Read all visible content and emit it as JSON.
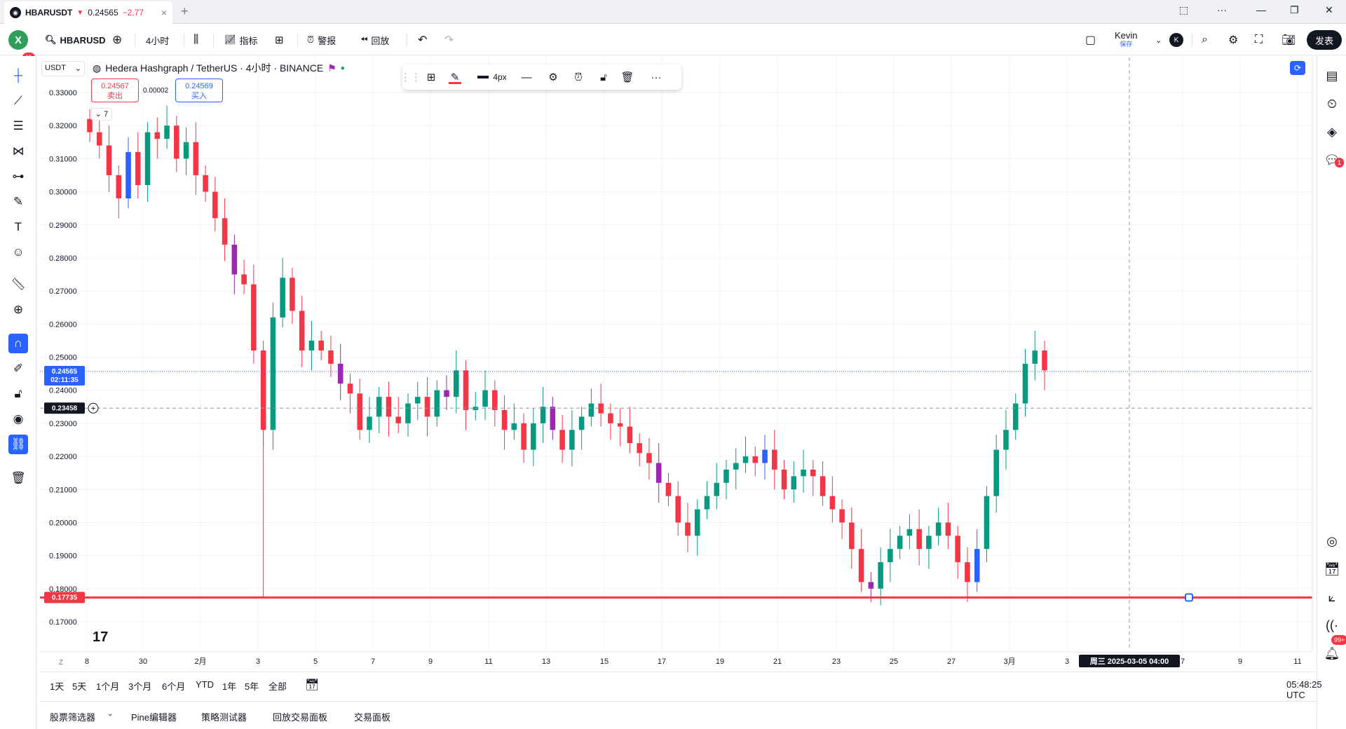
{
  "window": {
    "tab_title": "HBARUSDT",
    "tab_price": "0.24565",
    "tab_change": "−2.77",
    "tab_close": "×",
    "new_tab": "+",
    "controls": [
      "⬚",
      "···",
      "—",
      "❐",
      "✕"
    ]
  },
  "toolbar": {
    "avatar_letter": "X",
    "avatar_badge": "11",
    "symbol": "HBARUSD",
    "interval": "4小时",
    "indicators_label": "指标",
    "alerts_label": "警报",
    "replay_label": "回放",
    "user_name": "Kevin",
    "user_status": "保存",
    "user_initial": "K",
    "publish_label": "发表"
  },
  "chart": {
    "currency_select": "USDT",
    "legend_title": "Hedera Hashgraph / TetherUS · 4小时 · BINANCE",
    "sell_price": "0.24567",
    "sell_label": "卖出",
    "spread": "0.00002",
    "buy_price": "0.24569",
    "buy_label": "买入",
    "collapse_count": "7",
    "watermark": "17",
    "drawbar": {
      "width_label": "4px"
    },
    "current_price_label": "0.24565",
    "countdown_label": "02:11:35",
    "crosshair_price_label": "0.23458",
    "hline_price_label": "0.17735",
    "crosshair_time_label": "周三 2025-03-05   04:00",
    "x_axis_z": "Z"
  },
  "chart_data": {
    "type": "candlestick",
    "symbol": "HBARUSDT",
    "title": "Hedera Hashgraph / TetherUS · 4小时 · BINANCE",
    "ylim": [
      0.165,
      0.335
    ],
    "y_ticks": [
      "0.33000",
      "0.32000",
      "0.31000",
      "0.30000",
      "0.29000",
      "0.28000",
      "0.27000",
      "0.26000",
      "0.25000",
      "0.24000",
      "0.23000",
      "0.22000",
      "0.21000",
      "0.20000",
      "0.19000",
      "0.18000",
      "0.17000"
    ],
    "x_ticks": [
      "8",
      "30",
      "2月",
      "3",
      "5",
      "7",
      "9",
      "11",
      "13",
      "15",
      "17",
      "19",
      "21",
      "23",
      "25",
      "27",
      "3月",
      "3",
      "周三 2025-03-05   04:00",
      "7",
      "9",
      "11"
    ],
    "colors": {
      "up": "#089981",
      "down": "#f23645",
      "alt_up": "#2962ff",
      "alt_down": "#9c27b0",
      "hline": "#f23645"
    },
    "horizontal_line": 0.17735,
    "last_price": 0.24565,
    "crosshair_price": 0.23458,
    "closes": [
      0.318,
      0.314,
      0.305,
      0.298,
      0.312,
      0.302,
      0.318,
      0.316,
      0.32,
      0.31,
      0.315,
      0.305,
      0.3,
      0.292,
      0.284,
      0.275,
      0.272,
      0.252,
      0.228,
      0.262,
      0.274,
      0.264,
      0.252,
      0.255,
      0.252,
      0.248,
      0.242,
      0.239,
      0.228,
      0.232,
      0.238,
      0.232,
      0.23,
      0.236,
      0.238,
      0.232,
      0.24,
      0.238,
      0.246,
      0.234,
      0.235,
      0.24,
      0.234,
      0.228,
      0.23,
      0.222,
      0.23,
      0.235,
      0.228,
      0.222,
      0.228,
      0.232,
      0.236,
      0.233,
      0.23,
      0.229,
      0.224,
      0.221,
      0.218,
      0.212,
      0.208,
      0.2,
      0.196,
      0.204,
      0.208,
      0.212,
      0.216,
      0.218,
      0.22,
      0.218,
      0.222,
      0.216,
      0.21,
      0.214,
      0.216,
      0.214,
      0.208,
      0.204,
      0.2,
      0.192,
      0.182,
      0.18,
      0.188,
      0.192,
      0.196,
      0.198,
      0.192,
      0.196,
      0.2,
      0.196,
      0.188,
      0.182,
      0.192,
      0.208,
      0.222,
      0.228,
      0.236,
      0.248,
      0.252,
      0.246
    ]
  },
  "timeframes": [
    "1天",
    "5天",
    "1个月",
    "3个月",
    "6个月",
    "YTD",
    "1年",
    "5年",
    "全部"
  ],
  "clock": "05:48:25 UTC",
  "panels": [
    "股票筛选器",
    "Pine编辑器",
    "策略测试器",
    "回放交易面板",
    "交易面板"
  ]
}
